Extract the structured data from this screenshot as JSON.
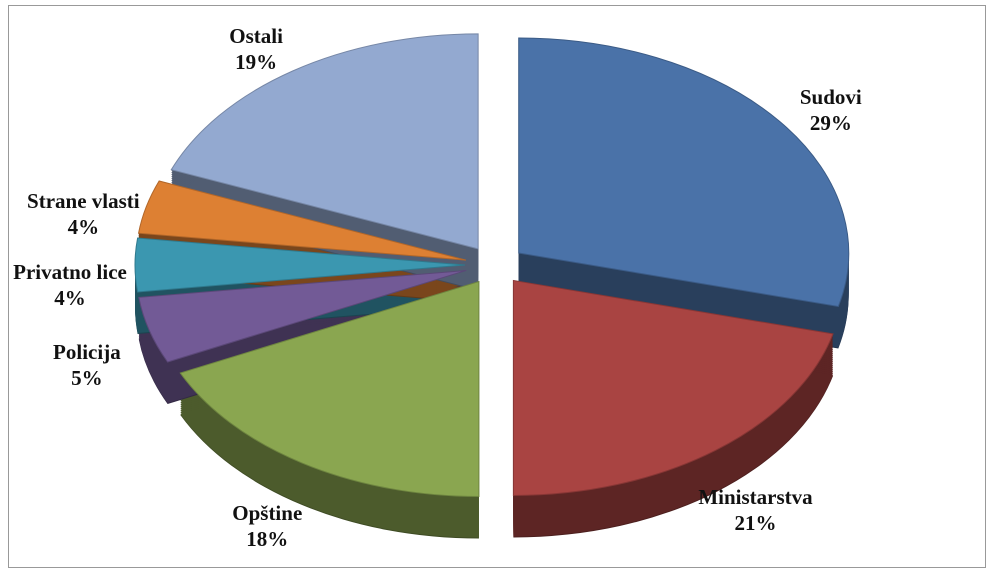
{
  "chart_data": {
    "type": "pie",
    "categories": [
      "Sudovi",
      "Ministarstva",
      "Opštine",
      "Policija",
      "Privatno lice",
      "Strane vlasti",
      "Ostali"
    ],
    "values": [
      29,
      21,
      18,
      5,
      4,
      4,
      19
    ],
    "value_labels": [
      "29%",
      "21%",
      "18%",
      "5%",
      "4%",
      "4%",
      "19%"
    ],
    "colors": [
      "#4a72a8",
      "#a94442",
      "#8aa650",
      "#725a96",
      "#3b97b0",
      "#dd8033",
      "#93a9d0"
    ]
  }
}
